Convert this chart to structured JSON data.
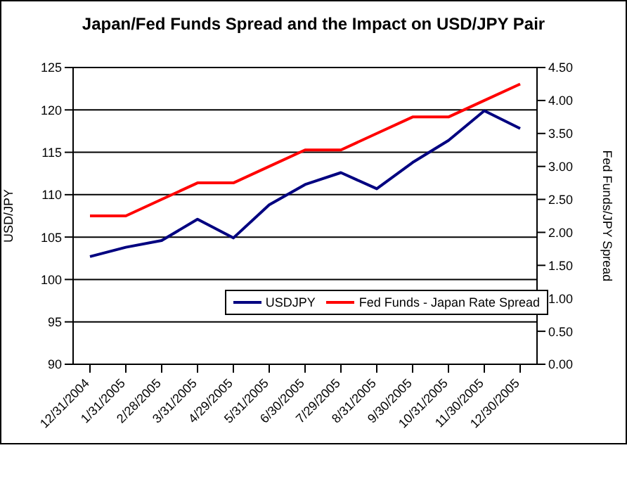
{
  "chart_data": {
    "type": "line",
    "title": "Japan/Fed Funds Spread and the Impact on USD/JPY Pair",
    "ylabel": "USD/JPY",
    "y2label": "Fed Funds/JPY Spread",
    "categories": [
      "12/31/2004",
      "1/31/2005",
      "2/28/2005",
      "3/31/2005",
      "4/29/2005",
      "5/31/2005",
      "6/30/2005",
      "7/29/2005",
      "8/31/2005",
      "9/30/2005",
      "10/31/2005",
      "11/30/2005",
      "12/30/2005"
    ],
    "series": [
      {
        "name": "USDJPY",
        "color": "#000080",
        "values": [
          102.7,
          103.8,
          104.6,
          107.1,
          104.9,
          108.8,
          111.2,
          112.6,
          110.7,
          113.8,
          116.4,
          119.9,
          117.8
        ]
      },
      {
        "name": "Fed Funds - Japan Rate Spread",
        "color": "#ff0000",
        "axis": "y2",
        "values": [
          2.25,
          2.25,
          2.5,
          2.75,
          2.75,
          3.0,
          3.25,
          3.25,
          3.5,
          3.75,
          3.75,
          4.0,
          4.25
        ]
      }
    ],
    "ylim": [
      90,
      125
    ],
    "yticks": [
      90,
      95,
      100,
      105,
      110,
      115,
      120,
      125
    ],
    "y2lim": [
      0,
      4.5
    ],
    "y2ticks": [
      {
        "value": 0,
        "label": "0.00"
      },
      {
        "value": 0.5,
        "label": "0.50"
      },
      {
        "value": 1,
        "label": "1.00"
      },
      {
        "value": 1.5,
        "label": "1.50"
      },
      {
        "value": 2,
        "label": "2.00"
      },
      {
        "value": 2.5,
        "label": "2.50"
      },
      {
        "value": 3,
        "label": "3.00"
      },
      {
        "value": 3.5,
        "label": "3.50"
      },
      {
        "value": 4,
        "label": "4.00"
      },
      {
        "value": 4.5,
        "label": "4.50"
      }
    ],
    "grid": "y",
    "legend": "bottom right",
    "marker": "none",
    "line_style": "solid"
  }
}
